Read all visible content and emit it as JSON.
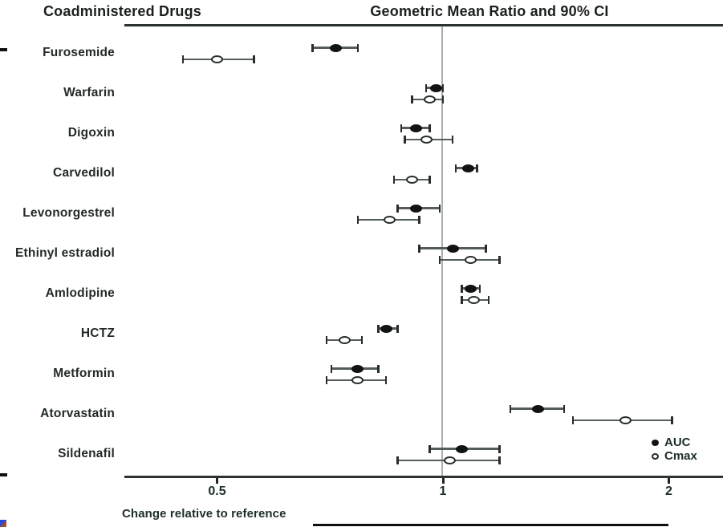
{
  "chart_data": {
    "type": "scatter",
    "subtype": "forest-plot",
    "left_column_title": "Coadministered Drugs",
    "title": "Geometric Mean Ratio and 90% CI",
    "xlabel": "Change relative to reference",
    "x_scale": "log",
    "x_ticks": [
      "0.5",
      "1",
      "2"
    ],
    "x_tick_values": [
      0.5,
      1,
      2
    ],
    "xlim": [
      0.38,
      2.36
    ],
    "reference_line_x": 1,
    "grid": false,
    "legend_position": "bottom-right",
    "categories": [
      "Furosemide",
      "Warfarin",
      "Digoxin",
      "Carvedilol",
      "Levonorgestrel",
      "Ethinyl estradiol",
      "Amlodipine",
      "HCTZ",
      "Metformin",
      "Atorvastatin",
      "Sildenafil"
    ],
    "series": [
      {
        "name": "AUC",
        "marker": "filled-circle",
        "values": [
          {
            "mean": 0.72,
            "ci_low": 0.67,
            "ci_high": 0.77
          },
          {
            "mean": 0.98,
            "ci_low": 0.95,
            "ci_high": 1.0
          },
          {
            "mean": 0.92,
            "ci_low": 0.88,
            "ci_high": 0.96
          },
          {
            "mean": 1.08,
            "ci_low": 1.04,
            "ci_high": 1.11
          },
          {
            "mean": 0.92,
            "ci_low": 0.87,
            "ci_high": 0.99
          },
          {
            "mean": 1.03,
            "ci_low": 0.93,
            "ci_high": 1.14
          },
          {
            "mean": 1.09,
            "ci_low": 1.06,
            "ci_high": 1.12
          },
          {
            "mean": 0.84,
            "ci_low": 0.82,
            "ci_high": 0.87
          },
          {
            "mean": 0.77,
            "ci_low": 0.71,
            "ci_high": 0.82
          },
          {
            "mean": 1.34,
            "ci_low": 1.23,
            "ci_high": 1.45
          },
          {
            "mean": 1.06,
            "ci_low": 0.96,
            "ci_high": 1.19
          }
        ]
      },
      {
        "name": "Cmax",
        "marker": "open-circle",
        "values": [
          {
            "mean": 0.5,
            "ci_low": 0.45,
            "ci_high": 0.56
          },
          {
            "mean": 0.96,
            "ci_low": 0.91,
            "ci_high": 1.0
          },
          {
            "mean": 0.95,
            "ci_low": 0.89,
            "ci_high": 1.03
          },
          {
            "mean": 0.91,
            "ci_low": 0.86,
            "ci_high": 0.96
          },
          {
            "mean": 0.85,
            "ci_low": 0.77,
            "ci_high": 0.93
          },
          {
            "mean": 1.09,
            "ci_low": 0.99,
            "ci_high": 1.19
          },
          {
            "mean": 1.1,
            "ci_low": 1.06,
            "ci_high": 1.15
          },
          {
            "mean": 0.74,
            "ci_low": 0.7,
            "ci_high": 0.78
          },
          {
            "mean": 0.77,
            "ci_low": 0.7,
            "ci_high": 0.84
          },
          {
            "mean": 1.75,
            "ci_low": 1.49,
            "ci_high": 2.02
          },
          {
            "mean": 1.02,
            "ci_low": 0.87,
            "ci_high": 1.19
          }
        ]
      }
    ],
    "legend_items": [
      {
        "label": "AUC",
        "marker": "filled-circle"
      },
      {
        "label": "Cmax",
        "marker": "open-circle"
      }
    ]
  },
  "colors": {
    "background": "#ffffff",
    "text": "#20302c",
    "marker_fill": "#121514",
    "marker_open_stroke": "#2a2f2d",
    "error_bar": "#555e5b",
    "axis_rule": "#2e3432",
    "reference_line": "#a7b0ac"
  }
}
